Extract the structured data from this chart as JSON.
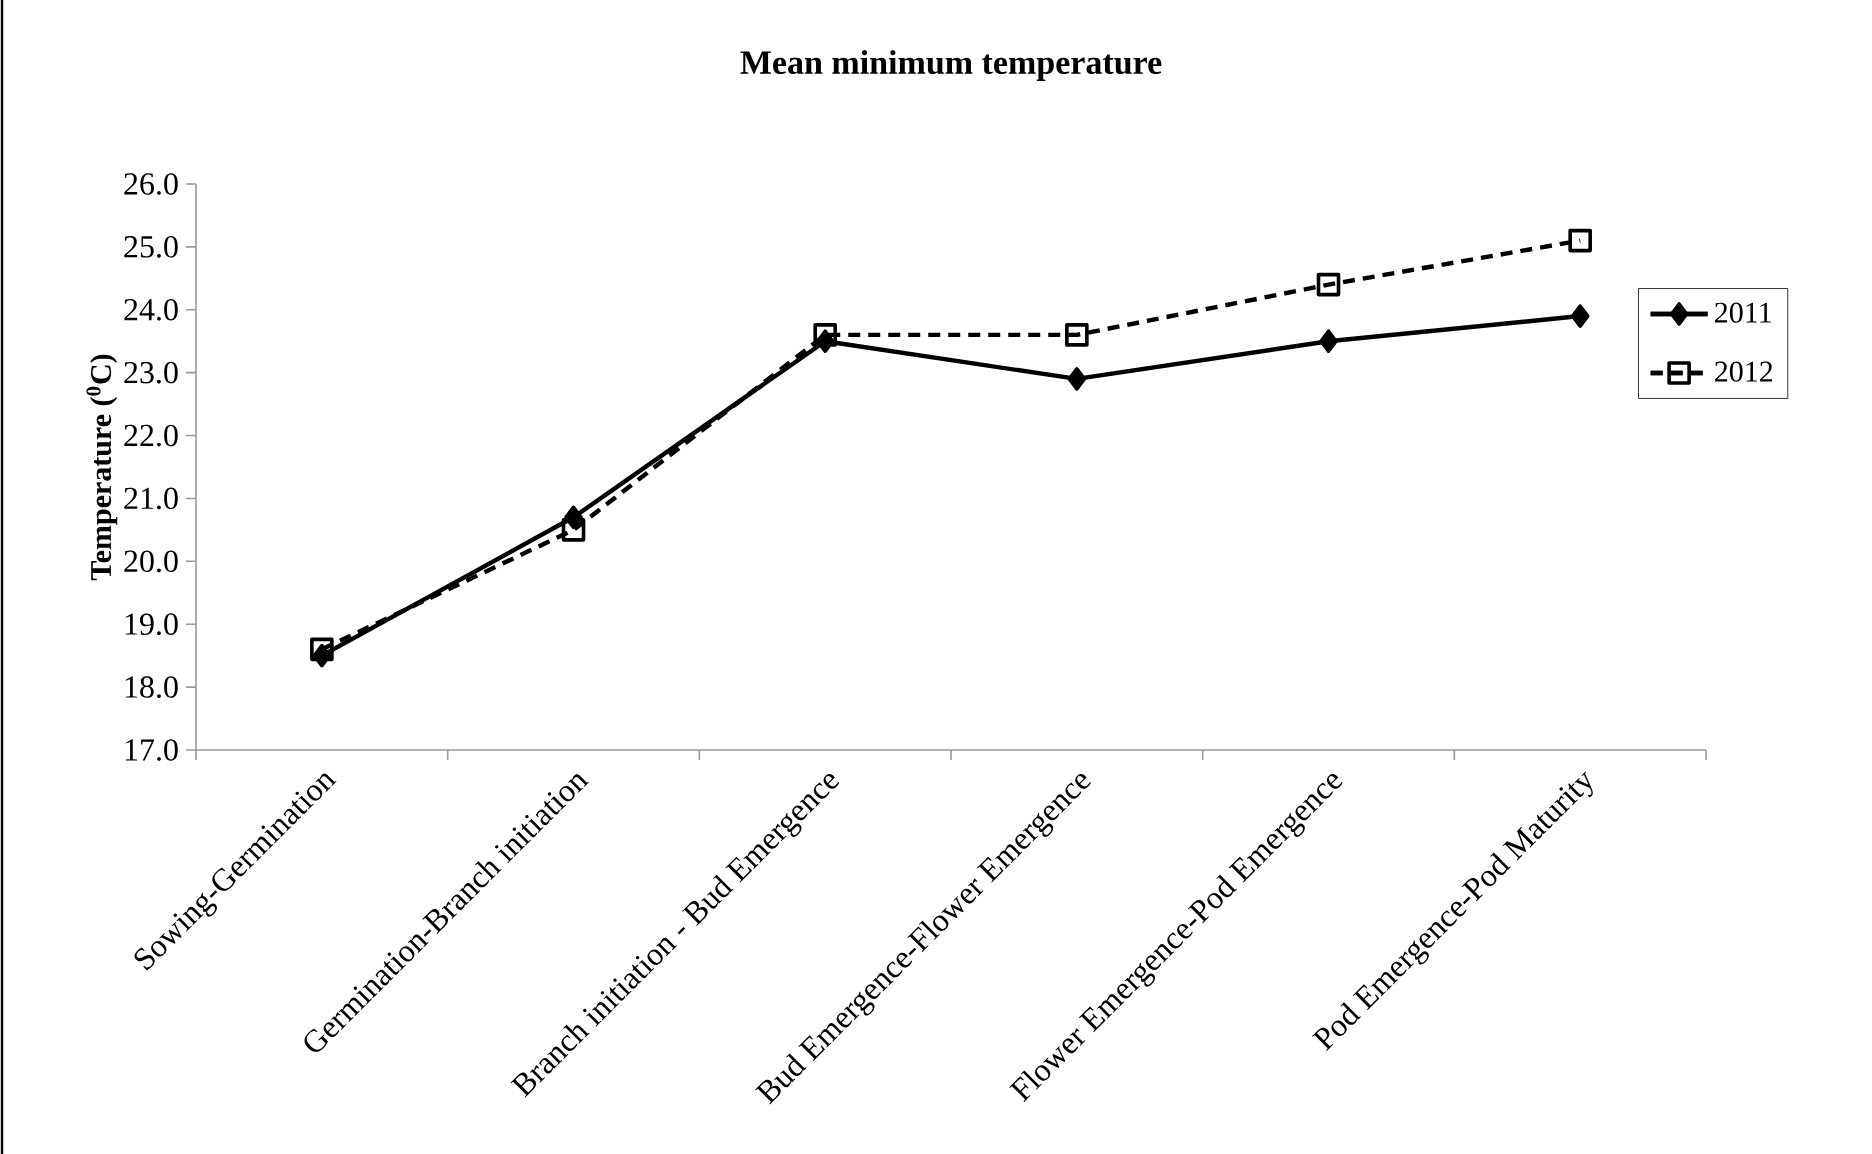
{
  "chart_data": {
    "type": "line",
    "title": "Mean minimum temperature",
    "ylabel": "Temperature ($^{0}$C)",
    "categories": [
      "Sowing-Germination",
      "Germination-Branch initiation",
      "Branch initiation - Bud Emergence",
      "Bud Emergence-Flower Emergence",
      "Flower Emergence-Pod Emergence",
      "Pod Emergence-Pod Maturity"
    ],
    "series": [
      {
        "name": "2011",
        "color": "#000000",
        "marker": "diamond",
        "line_style": "solid",
        "values": [
          18.5,
          20.7,
          23.5,
          22.9,
          23.5,
          23.9
        ]
      },
      {
        "name": "2012",
        "color": "#000000",
        "marker": "square",
        "line_style": "dashed",
        "values": [
          18.6,
          20.5,
          23.6,
          23.6,
          24.4,
          25.1
        ]
      }
    ],
    "ylim": [
      17.0,
      26.0
    ],
    "yticks": [
      {
        "value": 17,
        "label": "17.0"
      },
      {
        "value": 18,
        "label": "18.0"
      },
      {
        "value": 19,
        "label": "19.0"
      },
      {
        "value": 20,
        "label": "20.0"
      },
      {
        "value": 21,
        "label": "21.0"
      },
      {
        "value": 22,
        "label": "22.0"
      },
      {
        "value": 23,
        "label": "23.0"
      },
      {
        "value": 24,
        "label": "24.0"
      },
      {
        "value": 25,
        "label": "25.0"
      },
      {
        "value": 26,
        "label": "26.0"
      }
    ],
    "grid": false,
    "legend": "right"
  }
}
